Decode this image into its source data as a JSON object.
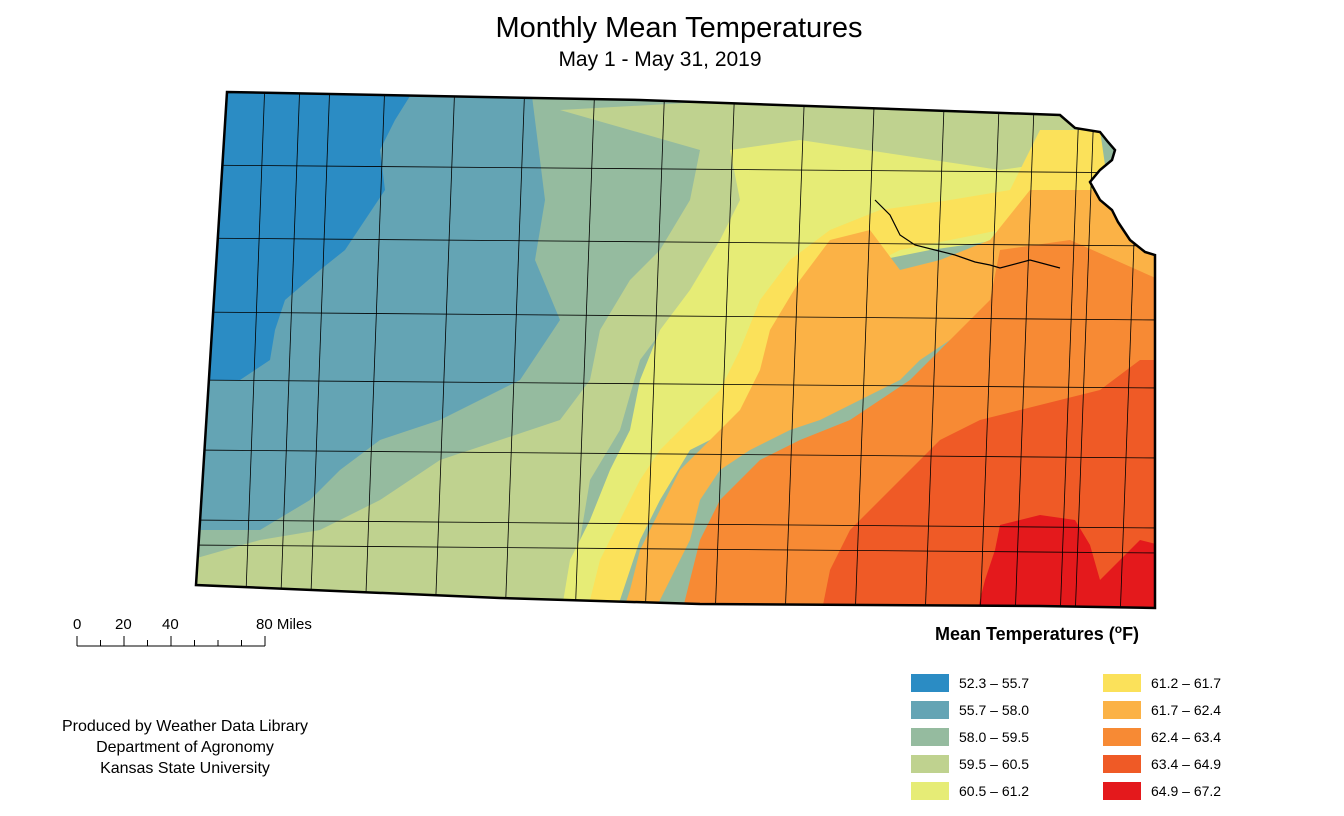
{
  "title": "Monthly Mean Temperatures",
  "subtitle": "May 1 - May 31, 2019",
  "scale_bar": {
    "labels": [
      "0",
      "20",
      "40",
      "80 Miles"
    ]
  },
  "credits": [
    "Produced by Weather Data Library",
    "Department of Agronomy",
    "Kansas State University"
  ],
  "legend": {
    "title": "Mean Temperatures (",
    "unit_sup": "o",
    "unit_tail": "F)",
    "classes": [
      {
        "label": "52.3 – 55.7",
        "color": "#2b8cc4"
      },
      {
        "label": "55.7 – 58.0",
        "color": "#64a4b4"
      },
      {
        "label": "58.0 – 59.5",
        "color": "#95bb9f"
      },
      {
        "label": "59.5 – 60.5",
        "color": "#bfd28f"
      },
      {
        "label": "60.5 – 61.2",
        "color": "#e6ec76"
      },
      {
        "label": "61.2 – 61.7",
        "color": "#fbe15a"
      },
      {
        "label": "61.7 – 62.4",
        "color": "#fbb246"
      },
      {
        "label": "62.4 – 63.4",
        "color": "#f78a34"
      },
      {
        "label": "63.4 – 64.9",
        "color": "#ef5a26"
      },
      {
        "label": "64.9 – 67.2",
        "color": "#e4191c"
      }
    ]
  }
}
